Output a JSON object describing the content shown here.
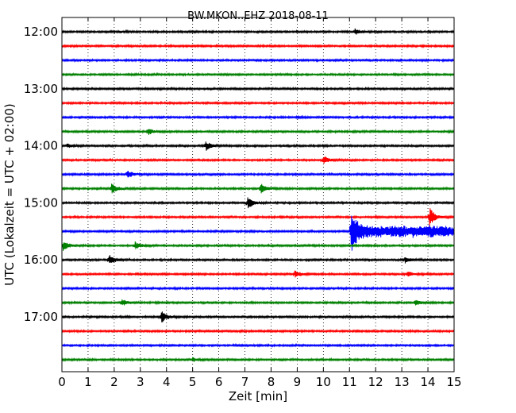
{
  "chart_data": {
    "type": "line",
    "title": "BW.MKON..EHZ 2018-08-11",
    "xlabel": "Zeit  [min]",
    "ylabel": "UTC (Lokalzeit = UTC + 02:00)",
    "xlim": [
      0,
      15
    ],
    "x_ticks": [
      "0",
      "1",
      "2",
      "3",
      "4",
      "5",
      "6",
      "7",
      "8",
      "9",
      "10",
      "11",
      "12",
      "13",
      "14",
      "15"
    ],
    "row_interval_minutes": 15,
    "ytick_labels": [
      {
        "label": "12:00",
        "row": 0
      },
      {
        "label": "13:00",
        "row": 4
      },
      {
        "label": "14:00",
        "row": 8
      },
      {
        "label": "15:00",
        "row": 12
      },
      {
        "label": "16:00",
        "row": 16
      },
      {
        "label": "17:00",
        "row": 20
      }
    ],
    "grid": "vertical dotted",
    "colors": [
      "#000000",
      "#ff0000",
      "#0000ff",
      "#008000"
    ],
    "traces": [
      {
        "start": "12:00",
        "color": "#000000",
        "events": [
          {
            "x": 2.2,
            "amp": 0.15
          },
          {
            "x": 11.2,
            "amp": 0.55
          }
        ]
      },
      {
        "start": "12:15",
        "color": "#ff0000",
        "events": []
      },
      {
        "start": "12:30",
        "color": "#0000ff",
        "events": []
      },
      {
        "start": "12:45",
        "color": "#008000",
        "events": []
      },
      {
        "start": "13:00",
        "color": "#000000",
        "events": []
      },
      {
        "start": "13:15",
        "color": "#ff0000",
        "events": []
      },
      {
        "start": "13:30",
        "color": "#0000ff",
        "events": [
          {
            "x": 9.0,
            "amp": 0.12
          }
        ]
      },
      {
        "start": "13:45",
        "color": "#008000",
        "events": [
          {
            "x": 3.3,
            "amp": 0.5
          }
        ]
      },
      {
        "start": "14:00",
        "color": "#000000",
        "events": [
          {
            "x": 0.2,
            "amp": 0.3
          },
          {
            "x": 5.5,
            "amp": 0.8
          }
        ]
      },
      {
        "start": "14:15",
        "color": "#ff0000",
        "events": [
          {
            "x": 10.0,
            "amp": 0.7
          }
        ]
      },
      {
        "start": "14:30",
        "color": "#0000ff",
        "events": [
          {
            "x": 2.5,
            "amp": 0.7
          }
        ]
      },
      {
        "start": "14:45",
        "color": "#008000",
        "events": [
          {
            "x": 1.9,
            "amp": 0.9
          },
          {
            "x": 7.6,
            "amp": 0.8
          }
        ]
      },
      {
        "start": "15:00",
        "color": "#000000",
        "events": [
          {
            "x": 7.1,
            "amp": 1.0
          }
        ]
      },
      {
        "start": "15:15",
        "color": "#ff0000",
        "events": [
          {
            "x": 14.05,
            "amp": 1.8
          }
        ]
      },
      {
        "start": "15:30",
        "color": "#0000ff",
        "events": [
          {
            "x": 11.05,
            "amp": 3.6
          }
        ],
        "noisy_from": 11.05
      },
      {
        "start": "15:45",
        "color": "#008000",
        "events": [
          {
            "x": 0.05,
            "amp": 0.8
          },
          {
            "x": 2.8,
            "amp": 0.6
          }
        ]
      },
      {
        "start": "16:00",
        "color": "#000000",
        "events": [
          {
            "x": 1.8,
            "amp": 0.9
          },
          {
            "x": 13.1,
            "amp": 0.6
          }
        ]
      },
      {
        "start": "16:15",
        "color": "#ff0000",
        "events": [
          {
            "x": 8.9,
            "amp": 0.6
          },
          {
            "x": 13.2,
            "amp": 0.5
          }
        ]
      },
      {
        "start": "16:30",
        "color": "#0000ff",
        "events": []
      },
      {
        "start": "16:45",
        "color": "#008000",
        "events": [
          {
            "x": 2.3,
            "amp": 0.6
          },
          {
            "x": 13.5,
            "amp": 0.6
          }
        ]
      },
      {
        "start": "17:00",
        "color": "#000000",
        "events": [
          {
            "x": 3.8,
            "amp": 1.0
          }
        ]
      },
      {
        "start": "17:15",
        "color": "#ff0000",
        "events": []
      },
      {
        "start": "17:30",
        "color": "#0000ff",
        "events": []
      },
      {
        "start": "17:45",
        "color": "#008000",
        "events": [
          {
            "x": 5.0,
            "amp": 0.3
          }
        ]
      }
    ]
  }
}
